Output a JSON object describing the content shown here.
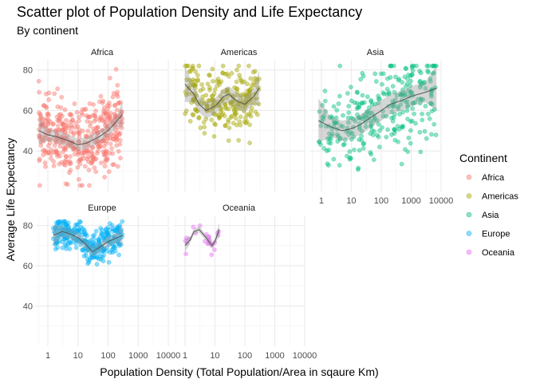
{
  "chart_data": {
    "type": "scatter",
    "title": "Scatter plot of Population Density and Life Expectancy",
    "subtitle": "By continent",
    "xlabel": "Population Density (Total Population/Area in sqaure Km)",
    "ylabel": "Average Life Expectancy",
    "x_scale": "log10",
    "xlim": [
      0.4,
      10000
    ],
    "ylim": [
      20,
      85
    ],
    "x_ticks": [
      1,
      10,
      100,
      1000,
      10000
    ],
    "x_tick_labels": [
      "1",
      "10",
      "100",
      "1000",
      "10000"
    ],
    "y_ticks": [
      40,
      60,
      80
    ],
    "y_tick_labels": [
      "40",
      "60",
      "80"
    ],
    "grid": true,
    "facets": [
      "Africa",
      "Americas",
      "Asia",
      "Europe",
      "Oceania"
    ],
    "legend": {
      "title": "Continent",
      "position": "right",
      "entries": [
        {
          "label": "Africa",
          "color": "#F8766D"
        },
        {
          "label": "Americas",
          "color": "#A3A500"
        },
        {
          "label": "Asia",
          "color": "#00BF7D"
        },
        {
          "label": "Europe",
          "color": "#00B0F6"
        },
        {
          "label": "Oceania",
          "color": "#E76BF3"
        }
      ]
    },
    "trend": [
      {
        "facet": "Africa",
        "x": [
          0.5,
          1,
          2,
          5,
          10,
          20,
          50,
          100,
          200,
          300
        ],
        "y": [
          50,
          48,
          47,
          45,
          43,
          44,
          47,
          50,
          55,
          58
        ]
      },
      {
        "facet": "Americas",
        "x": [
          1,
          2,
          3,
          5,
          10,
          20,
          30,
          50,
          100,
          200,
          300
        ],
        "y": [
          73,
          68,
          63,
          60,
          62,
          67,
          68,
          65,
          63,
          67,
          71
        ]
      },
      {
        "facet": "Asia",
        "x": [
          0.8,
          2,
          5,
          10,
          20,
          50,
          100,
          200,
          500,
          1000,
          3000,
          7000
        ],
        "y": [
          55,
          52,
          50,
          51,
          53,
          57,
          60,
          63,
          65,
          67,
          69,
          71
        ]
      },
      {
        "facet": "Europe",
        "x": [
          1.5,
          3,
          5,
          10,
          20,
          30,
          50,
          100,
          200,
          300
        ],
        "y": [
          75,
          77,
          76,
          74,
          70,
          67,
          69,
          72,
          74,
          75
        ]
      },
      {
        "facet": "Oceania",
        "x": [
          1,
          1.5,
          2,
          3,
          5,
          8,
          10,
          14
        ],
        "y": [
          70,
          73,
          77,
          78,
          74,
          70,
          72,
          78
        ]
      }
    ]
  }
}
